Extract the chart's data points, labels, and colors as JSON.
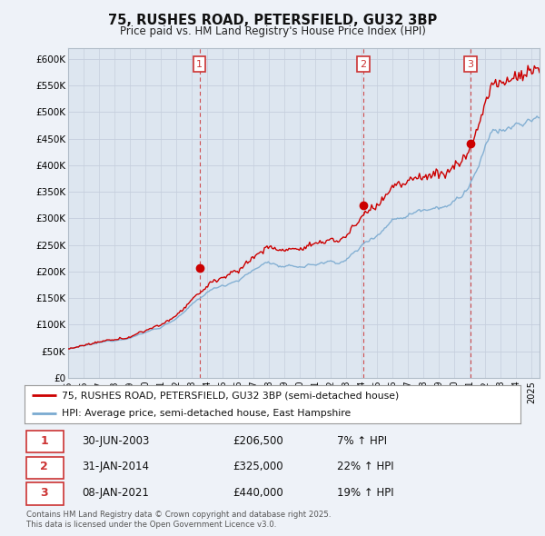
{
  "title": "75, RUSHES ROAD, PETERSFIELD, GU32 3BP",
  "subtitle": "Price paid vs. HM Land Registry's House Price Index (HPI)",
  "legend_line1": "75, RUSHES ROAD, PETERSFIELD, GU32 3BP (semi-detached house)",
  "legend_line2": "HPI: Average price, semi-detached house, East Hampshire",
  "sale1_label": "1",
  "sale1_date": "30-JUN-2003",
  "sale1_price": "£206,500",
  "sale1_hpi": "7% ↑ HPI",
  "sale2_label": "2",
  "sale2_date": "31-JAN-2014",
  "sale2_price": "£325,000",
  "sale2_hpi": "22% ↑ HPI",
  "sale3_label": "3",
  "sale3_date": "08-JAN-2021",
  "sale3_price": "£440,000",
  "sale3_hpi": "19% ↑ HPI",
  "footer": "Contains HM Land Registry data © Crown copyright and database right 2025.\nThis data is licensed under the Open Government Licence v3.0.",
  "bg_color": "#eef2f8",
  "plot_bg_color": "#dde6f0",
  "line_color_red": "#cc0000",
  "line_color_blue": "#7aaad0",
  "vline_color": "#cc3333",
  "grid_color": "#c5cedd",
  "ylim": [
    0,
    620000
  ],
  "yticks": [
    0,
    50000,
    100000,
    150000,
    200000,
    250000,
    300000,
    350000,
    400000,
    450000,
    500000,
    550000,
    600000
  ],
  "sale1_x_year": 2003.5,
  "sale1_y": 206500,
  "sale2_x_year": 2014.08,
  "sale2_y": 325000,
  "sale3_x_year": 2021.03,
  "sale3_y": 440000,
  "xmin": 1995.5,
  "xmax": 2025.5
}
